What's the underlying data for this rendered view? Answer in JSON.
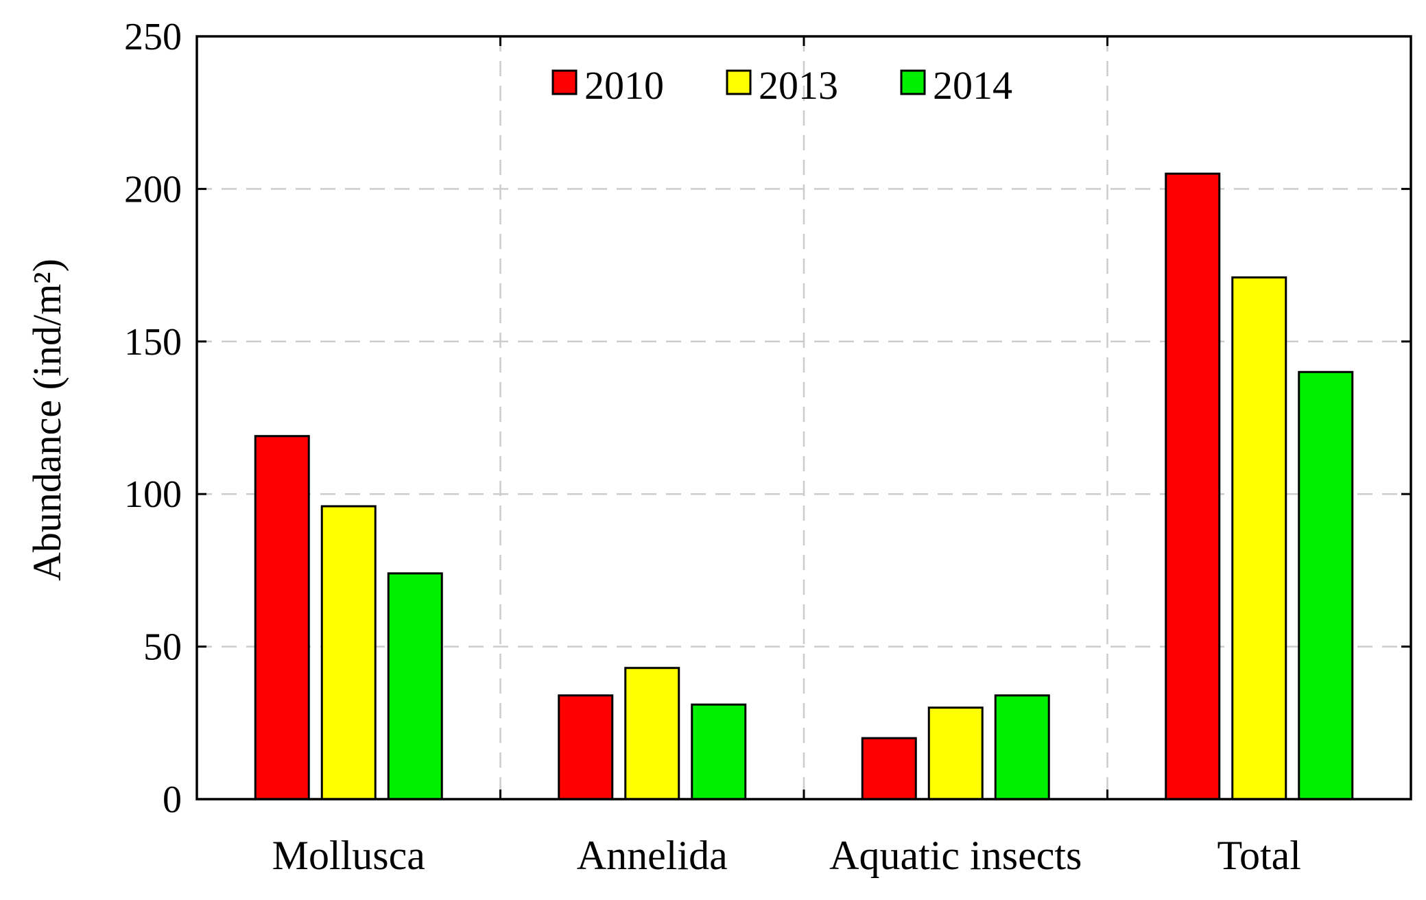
{
  "chart_data": {
    "type": "bar",
    "categories": [
      "Mollusca",
      "Annelida",
      "Aquatic insects",
      "Total"
    ],
    "series": [
      {
        "name": "2010",
        "color": "#ff0000",
        "values": [
          119,
          34,
          20,
          205
        ]
      },
      {
        "name": "2013",
        "color": "#ffff00",
        "values": [
          96,
          43,
          30,
          171
        ]
      },
      {
        "name": "2014",
        "color": "#00ee00",
        "values": [
          74,
          31,
          34,
          140
        ]
      }
    ],
    "title": "",
    "xlabel": "",
    "ylabel": "Abundance (ind/m²)",
    "ylim": [
      0,
      250
    ],
    "yticks": [
      "0",
      "50",
      "100",
      "150",
      "200",
      "250"
    ],
    "grid": true,
    "legend_position": "top-center"
  }
}
